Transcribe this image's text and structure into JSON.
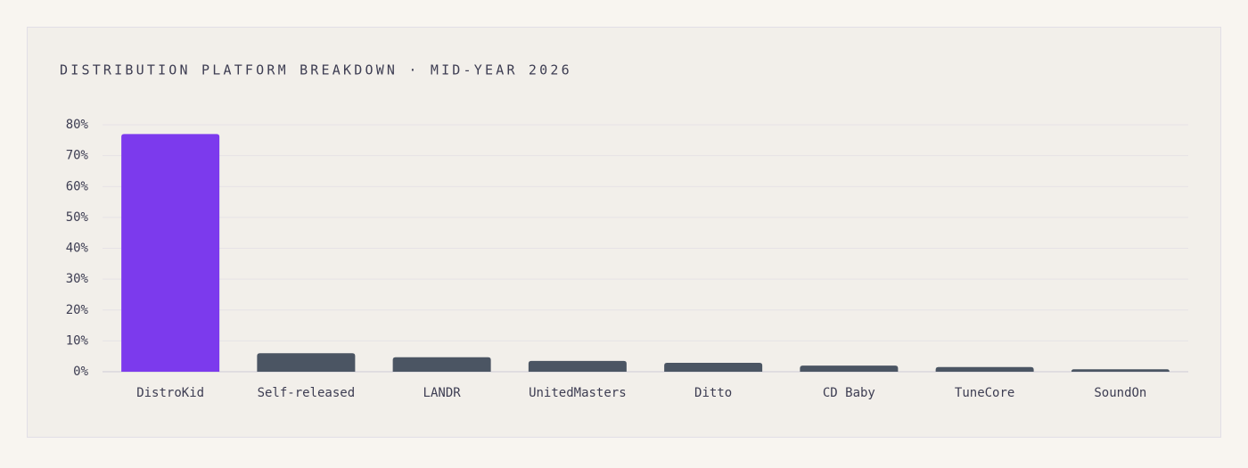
{
  "chart_data": {
    "type": "bar",
    "title": "DISTRIBUTION PLATFORM BREAKDOWN · MID-YEAR 2026",
    "categories": [
      "DistroKid",
      "Self-released",
      "LANDR",
      "UnitedMasters",
      "Ditto",
      "CD Baby",
      "TuneCore",
      "SoundOn"
    ],
    "values": [
      77,
      6,
      4.7,
      3.5,
      2.9,
      2,
      1.5,
      0.8
    ],
    "colors": [
      "#7c3aed",
      "#4b5563",
      "#4b5563",
      "#4b5563",
      "#4b5563",
      "#4b5563",
      "#4b5563",
      "#4b5563"
    ],
    "ylim": [
      0,
      80
    ],
    "yticks": [
      {
        "value": 0,
        "label": "0%"
      },
      {
        "value": 10,
        "label": "10%"
      },
      {
        "value": 20,
        "label": "20%"
      },
      {
        "value": 30,
        "label": "30%"
      },
      {
        "value": 40,
        "label": "40%"
      },
      {
        "value": 50,
        "label": "50%"
      },
      {
        "value": 60,
        "label": "60%"
      },
      {
        "value": 70,
        "label": "70%"
      },
      {
        "value": 80,
        "label": "80%"
      }
    ],
    "grid": true
  }
}
